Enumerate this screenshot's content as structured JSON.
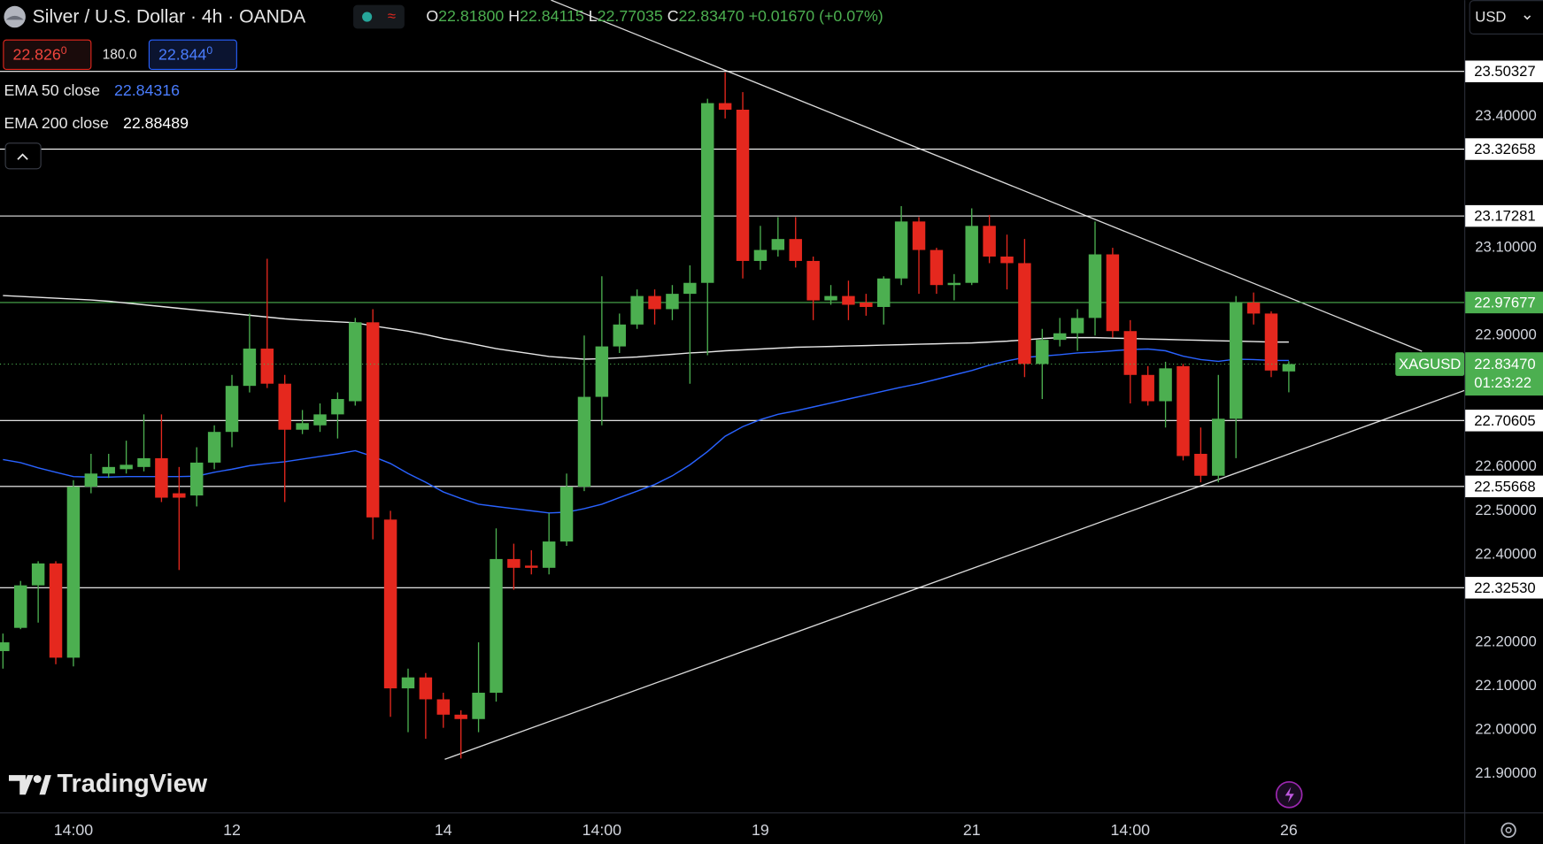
{
  "ui": {
    "symbol_title": "Silver / U.S. Dollar · 4h · OANDA",
    "ohlc": [
      {
        "key": "O",
        "value": "22.81800"
      },
      {
        "key": "H",
        "value": "22.84115"
      },
      {
        "key": "L",
        "value": "22.77035"
      },
      {
        "key": "C",
        "value": "22.83470"
      }
    ],
    "change": "+0.01670 (+0.07%)",
    "sell_price": "22.826",
    "sell_pip": "0",
    "spread": "180.0",
    "buy_price": "22.844",
    "buy_pip": "0",
    "currency": "USD",
    "logo": "TradingView"
  },
  "chart_data": {
    "type": "candlestick",
    "categories": [
      null,
      null,
      null,
      null,
      "14:00",
      null,
      null,
      null,
      null,
      null,
      null,
      null,
      null,
      "12",
      null,
      null,
      null,
      null,
      null,
      null,
      null,
      null,
      null,
      null,
      null,
      "14",
      null,
      null,
      null,
      null,
      null,
      null,
      null,
      null,
      "14:00",
      null,
      null,
      null,
      null,
      null,
      null,
      null,
      null,
      "19",
      null,
      null,
      null,
      null,
      null,
      null,
      null,
      null,
      null,
      null,
      null,
      "21",
      null,
      null,
      null,
      null,
      null,
      null,
      null,
      null,
      "14:00",
      null,
      null,
      null,
      null,
      null,
      null,
      null,
      null,
      "26"
    ],
    "open": [
      22.18,
      22.233,
      22.33,
      22.38,
      22.165,
      22.555,
      22.585,
      22.595,
      22.6,
      22.62,
      22.54,
      22.535,
      22.61,
      22.68,
      22.785,
      22.87,
      22.79,
      22.685,
      22.695,
      22.72,
      22.75,
      22.93,
      22.48,
      22.095,
      22.12,
      22.07,
      22.035,
      22.025,
      22.085,
      22.39,
      22.375,
      22.37,
      22.43,
      22.555,
      22.76,
      22.875,
      22.925,
      22.99,
      22.96,
      22.995,
      23.02,
      23.43,
      23.415,
      23.07,
      23.095,
      23.12,
      23.07,
      22.98,
      22.99,
      22.975,
      22.965,
      23.03,
      23.16,
      23.095,
      23.015,
      23.02,
      23.15,
      23.08,
      23.065,
      22.835,
      22.89,
      22.905,
      22.94,
      23.085,
      22.91,
      22.81,
      22.75,
      22.83,
      22.63,
      22.58,
      22.71,
      22.975,
      22.95,
      22.818
    ],
    "high": [
      22.22,
      22.34,
      22.385,
      22.385,
      22.57,
      22.63,
      22.63,
      22.66,
      22.72,
      22.72,
      22.6,
      22.645,
      22.695,
      22.81,
      22.95,
      23.075,
      22.81,
      22.73,
      22.745,
      22.77,
      22.94,
      22.96,
      22.5,
      22.14,
      22.13,
      22.085,
      22.045,
      22.2,
      22.46,
      22.425,
      22.41,
      22.495,
      22.585,
      22.9,
      23.035,
      22.95,
      23.005,
      23.005,
      23.015,
      23.06,
      23.44,
      23.5,
      23.455,
      23.15,
      23.17,
      23.17,
      23.08,
      23.015,
      23.025,
      22.995,
      23.035,
      23.195,
      23.17,
      23.1,
      23.04,
      23.19,
      23.175,
      23.13,
      23.12,
      22.915,
      22.94,
      22.96,
      23.16,
      23.1,
      22.935,
      22.83,
      22.84,
      22.835,
      22.69,
      22.81,
      22.99,
      22.998,
      22.955,
      22.84115
    ],
    "low": [
      22.14,
      22.23,
      22.245,
      22.15,
      22.145,
      22.54,
      22.575,
      22.585,
      22.59,
      22.52,
      22.365,
      22.51,
      22.595,
      22.645,
      22.77,
      22.78,
      22.52,
      22.675,
      22.68,
      22.665,
      22.74,
      22.435,
      22.03,
      21.995,
      21.98,
      22.005,
      21.935,
      21.995,
      22.065,
      22.32,
      22.355,
      22.355,
      22.42,
      22.545,
      22.695,
      22.86,
      22.915,
      22.925,
      22.935,
      22.79,
      22.855,
      23.395,
      23.03,
      23.05,
      23.08,
      23.055,
      22.935,
      22.97,
      22.935,
      22.945,
      22.925,
      23.015,
      22.995,
      22.995,
      22.98,
      23.015,
      23.065,
      23.005,
      22.805,
      22.755,
      22.875,
      22.865,
      22.9,
      22.895,
      22.745,
      22.74,
      22.69,
      22.615,
      22.565,
      22.565,
      22.62,
      22.925,
      22.805,
      22.77035
    ],
    "close": [
      22.2,
      22.33,
      22.38,
      22.165,
      22.555,
      22.585,
      22.6,
      22.605,
      22.62,
      22.53,
      22.53,
      22.61,
      22.68,
      22.785,
      22.87,
      22.79,
      22.685,
      22.7,
      22.72,
      22.755,
      22.93,
      22.485,
      22.095,
      22.12,
      22.07,
      22.035,
      22.025,
      22.085,
      22.39,
      22.37,
      22.37,
      22.43,
      22.555,
      22.76,
      22.875,
      22.925,
      22.99,
      22.96,
      22.995,
      23.02,
      23.43,
      23.415,
      23.07,
      23.095,
      23.12,
      23.07,
      22.98,
      22.99,
      22.97,
      22.965,
      23.03,
      23.16,
      23.095,
      23.015,
      23.02,
      23.15,
      23.08,
      23.065,
      22.835,
      22.89,
      22.905,
      22.94,
      23.085,
      22.91,
      22.81,
      22.75,
      22.825,
      22.625,
      22.58,
      22.71,
      22.975,
      22.95,
      22.82,
      22.8347
    ],
    "up_color": "#4caf50",
    "down_color": "#e5281e",
    "indicators": [
      {
        "name": "EMA 50 close",
        "color": "#2962ff",
        "last_value": 22.84316,
        "values": [
          22.617,
          22.61,
          22.598,
          22.588,
          22.578,
          22.577,
          22.577,
          22.578,
          22.578,
          22.578,
          22.578,
          22.579,
          22.588,
          22.595,
          22.603,
          22.608,
          22.612,
          22.618,
          22.624,
          22.63,
          22.637,
          22.624,
          22.608,
          22.585,
          22.565,
          22.543,
          22.528,
          22.515,
          22.51,
          22.505,
          22.5,
          22.495,
          22.497,
          22.505,
          22.515,
          22.53,
          22.545,
          22.56,
          22.58,
          22.605,
          22.635,
          22.67,
          22.692,
          22.708,
          22.72,
          22.728,
          22.737,
          22.746,
          22.755,
          22.764,
          22.773,
          22.782,
          22.79,
          22.8,
          22.81,
          22.82,
          22.832,
          22.842,
          22.85,
          22.853,
          22.856,
          22.86,
          22.862,
          22.865,
          22.868,
          22.869,
          22.865,
          22.853,
          22.845,
          22.841,
          22.846,
          22.845,
          22.843,
          22.843
        ]
      },
      {
        "name": "EMA 200 close",
        "color": "#e6e6e6",
        "last_value": 22.88489,
        "values": [
          22.991,
          22.989,
          22.987,
          22.985,
          22.983,
          22.981,
          22.978,
          22.974,
          22.97,
          22.966,
          22.962,
          22.958,
          22.954,
          22.95,
          22.946,
          22.942,
          22.938,
          22.935,
          22.933,
          22.931,
          22.929,
          22.922,
          22.916,
          22.91,
          22.902,
          22.893,
          22.886,
          22.878,
          22.87,
          22.864,
          22.858,
          22.852,
          22.849,
          22.846,
          22.847,
          22.849,
          22.851,
          22.854,
          22.857,
          22.86,
          22.862,
          22.865,
          22.867,
          22.869,
          22.871,
          22.873,
          22.874,
          22.875,
          22.876,
          22.877,
          22.878,
          22.879,
          22.88,
          22.881,
          22.882,
          22.883,
          22.885,
          22.887,
          22.89,
          22.893,
          22.895,
          22.895,
          22.895,
          22.894,
          22.893,
          22.892,
          22.891,
          22.89,
          22.889,
          22.888,
          22.887,
          22.886,
          22.885,
          22.885
        ]
      }
    ],
    "levels": [
      23.50327,
      23.32658,
      23.17281,
      22.97677,
      22.70605,
      22.55668,
      {
        "value": 22.3253,
        "label": "22.32530"
      }
    ],
    "level_colors": [
      "#ffffff",
      "#ffffff",
      "#ffffff",
      "#4caf50",
      "#ffffff",
      "#ffffff",
      "#ffffff"
    ],
    "ylim": [
      21.812,
      23.665
    ],
    "yticks": [
      {
        "value": 23.4,
        "label": "23.40000"
      },
      {
        "value": 23.1,
        "label": "23.10000"
      },
      {
        "value": 22.9,
        "label": "22.90000"
      },
      {
        "value": 22.6,
        "label": "22.60000"
      },
      {
        "value": 22.5,
        "label": "22.50000"
      },
      {
        "value": 22.4,
        "label": "22.40000"
      },
      {
        "value": 22.2,
        "label": "22.20000"
      },
      {
        "value": 22.1,
        "label": "22.10000"
      },
      {
        "value": 22.0,
        "label": "22.00000"
      },
      {
        "value": 21.9,
        "label": "21.90000"
      }
    ],
    "grid": false,
    "last": {
      "symbol": "XAGUSD",
      "price": "22.83470",
      "countdown": "01:23:22",
      "color": "#4caf50"
    }
  }
}
